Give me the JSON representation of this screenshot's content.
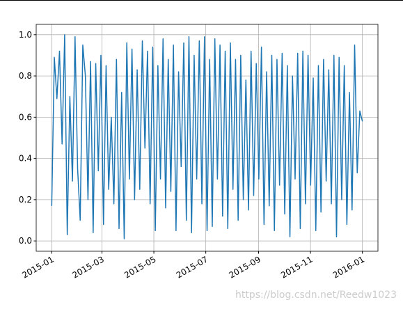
{
  "chart_data": {
    "type": "line",
    "series": [
      {
        "color": "#1f77b4",
        "values": [
          0.17,
          0.89,
          0.69,
          0.92,
          0.47,
          1.0,
          0.03,
          0.7,
          0.29,
          0.99,
          0.35,
          0.1,
          0.95,
          0.8,
          0.2,
          0.87,
          0.04,
          0.86,
          0.34,
          0.9,
          0.08,
          0.85,
          0.25,
          0.6,
          0.18,
          0.88,
          0.06,
          0.72,
          0.01,
          0.96,
          0.3,
          0.93,
          0.2,
          0.83,
          0.25,
          0.97,
          0.45,
          0.92,
          0.18,
          0.94,
          0.05,
          0.85,
          0.3,
          0.98,
          0.16,
          0.88,
          0.24,
          0.95,
          0.05,
          0.82,
          0.36,
          0.96,
          0.1,
          0.99,
          0.04,
          0.9,
          0.3,
          0.97,
          0.18,
          0.99,
          0.05,
          0.88,
          0.07,
          0.98,
          0.3,
          0.95,
          0.12,
          0.92,
          0.06,
          0.96,
          0.25,
          0.88,
          0.1,
          0.9,
          0.2,
          0.78,
          0.15,
          0.92,
          0.22,
          0.86,
          0.3,
          0.94,
          0.08,
          0.82,
          0.17,
          0.9,
          0.05,
          0.88,
          0.27,
          0.91,
          0.13,
          0.85,
          0.02,
          0.8,
          0.3,
          0.91,
          0.06,
          0.92,
          0.18,
          0.9,
          0.27,
          0.79,
          0.05,
          0.85,
          0.14,
          0.88,
          0.29,
          0.83,
          0.18,
          0.9,
          0.02,
          0.89,
          0.2,
          0.85,
          0.08,
          0.72,
          0.15,
          0.95,
          0.33,
          0.63,
          0.58
        ]
      }
    ],
    "xticks": [
      "2015-01",
      "2015-03",
      "2015-05",
      "2015-07",
      "2015-09",
      "2015-11",
      "2016-01"
    ],
    "ylim": [
      -0.05,
      1.05
    ],
    "yticks": [
      {
        "value": 0,
        "label": "0.0"
      },
      {
        "value": 0.2,
        "label": "0.2"
      },
      {
        "value": 0.4,
        "label": "0.4"
      },
      {
        "value": 0.6,
        "label": "0.6"
      },
      {
        "value": 0.8,
        "label": "0.8"
      },
      {
        "value": 1,
        "label": "1.0"
      }
    ],
    "grid": true,
    "watermark": "https://blog.csdn.net/Reedw1023"
  }
}
